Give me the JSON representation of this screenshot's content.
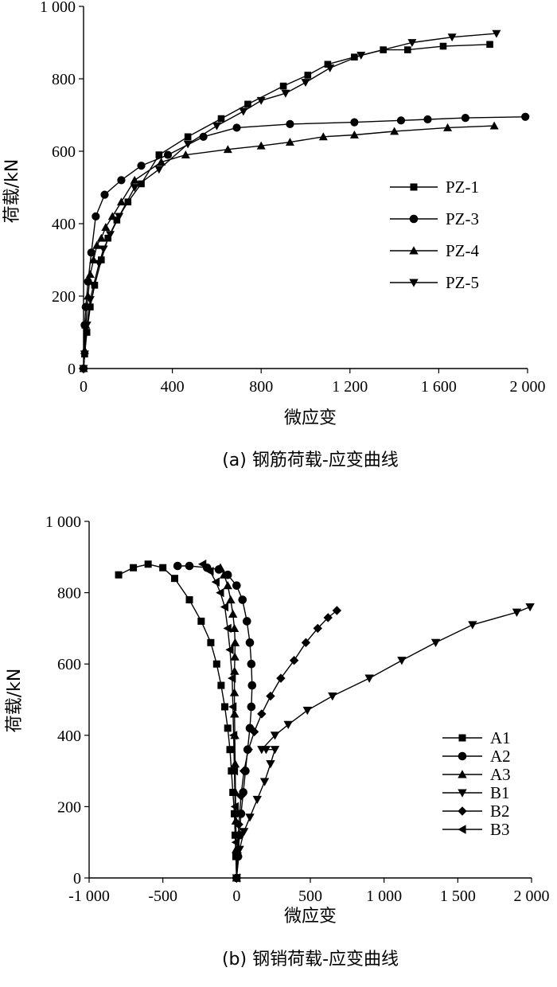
{
  "chart_data": [
    {
      "type": "line",
      "caption": "(a) 钢筋荷载-应变曲线",
      "xlabel": "微应变",
      "ylabel": "荷载/kN",
      "xlim": [
        0,
        2000
      ],
      "ylim": [
        0,
        1000
      ],
      "xticks": [
        0,
        400,
        800,
        1200,
        1600,
        2000
      ],
      "xtick_labels": [
        "0",
        "400",
        "800",
        "1 200",
        "1 600",
        "2 000"
      ],
      "yticks": [
        0,
        200,
        400,
        600,
        800,
        1000
      ],
      "ytick_labels": [
        "0",
        "200",
        "400",
        "600",
        "800",
        "1 000"
      ],
      "grid": false,
      "legend_position": "right",
      "series": [
        {
          "name": "PZ-1",
          "marker": "square",
          "x": [
            0,
            5,
            15,
            30,
            50,
            80,
            110,
            150,
            200,
            260,
            340,
            470,
            620,
            740,
            900,
            1010,
            1100,
            1220,
            1350,
            1460,
            1620,
            1830
          ],
          "y": [
            0,
            40,
            100,
            170,
            230,
            300,
            360,
            410,
            460,
            510,
            590,
            640,
            690,
            730,
            780,
            810,
            840,
            860,
            880,
            880,
            890,
            895
          ]
        },
        {
          "name": "PZ-3",
          "marker": "circle",
          "x": [
            0,
            5,
            10,
            20,
            35,
            55,
            95,
            170,
            260,
            380,
            540,
            690,
            930,
            1220,
            1430,
            1550,
            1720,
            1990
          ],
          "y": [
            0,
            120,
            170,
            240,
            320,
            420,
            480,
            520,
            560,
            590,
            640,
            665,
            675,
            680,
            685,
            688,
            692,
            695
          ]
        },
        {
          "name": "PZ-4",
          "marker": "triangle-up",
          "x": [
            0,
            5,
            10,
            20,
            30,
            45,
            60,
            80,
            100,
            130,
            170,
            230,
            350,
            460,
            650,
            800,
            930,
            1080,
            1220,
            1400,
            1640,
            1850
          ],
          "y": [
            0,
            50,
            120,
            200,
            260,
            300,
            340,
            360,
            390,
            420,
            460,
            520,
            570,
            590,
            605,
            615,
            625,
            640,
            645,
            655,
            665,
            670
          ]
        },
        {
          "name": "PZ-5",
          "marker": "triangle-down",
          "x": [
            0,
            5,
            15,
            30,
            45,
            70,
            90,
            120,
            160,
            230,
            340,
            470,
            600,
            720,
            800,
            910,
            1000,
            1110,
            1250,
            1480,
            1660,
            1860
          ],
          "y": [
            0,
            40,
            120,
            190,
            230,
            290,
            330,
            370,
            420,
            500,
            550,
            620,
            670,
            710,
            740,
            760,
            790,
            830,
            865,
            900,
            915,
            925
          ]
        }
      ]
    },
    {
      "type": "line",
      "caption": "(b) 钢销荷载-应变曲线",
      "xlabel": "微应变",
      "ylabel": "荷载/kN",
      "xlim": [
        -1000,
        2000
      ],
      "ylim": [
        0,
        1000
      ],
      "xticks": [
        -1000,
        -500,
        0,
        500,
        1000,
        1500,
        2000
      ],
      "xtick_labels": [
        "-1 000",
        "-500",
        "0",
        "500",
        "1 000",
        "1 500",
        "2 000"
      ],
      "yticks": [
        0,
        200,
        400,
        600,
        800,
        1000
      ],
      "ytick_labels": [
        "0",
        "200",
        "400",
        "600",
        "800",
        "1 000"
      ],
      "grid": false,
      "legend_position": "right",
      "series": [
        {
          "name": "A1",
          "marker": "square",
          "x": [
            0,
            -5,
            -10,
            -15,
            -25,
            -35,
            -45,
            -60,
            -80,
            -105,
            -135,
            -175,
            -240,
            -320,
            -420,
            -500,
            -600,
            -700,
            -800
          ],
          "y": [
            0,
            60,
            120,
            180,
            240,
            300,
            360,
            420,
            480,
            540,
            600,
            660,
            720,
            780,
            840,
            870,
            880,
            870,
            850
          ]
        },
        {
          "name": "A2",
          "marker": "circle",
          "x": [
            0,
            10,
            20,
            30,
            45,
            60,
            75,
            90,
            100,
            105,
            100,
            90,
            70,
            40,
            0,
            -60,
            -120,
            -200,
            -320,
            -400
          ],
          "y": [
            0,
            60,
            120,
            180,
            240,
            300,
            360,
            420,
            480,
            540,
            600,
            660,
            720,
            780,
            820,
            850,
            865,
            870,
            875,
            875
          ]
        },
        {
          "name": "A3",
          "marker": "triangle-up",
          "x": [
            0,
            -3,
            -5,
            -8,
            -10,
            -12,
            -14,
            -15,
            -14,
            -12,
            -10,
            -15,
            -25,
            -40,
            -60,
            -85,
            -110
          ],
          "y": [
            0,
            80,
            160,
            240,
            320,
            400,
            460,
            520,
            580,
            620,
            660,
            700,
            740,
            780,
            820,
            850,
            870
          ]
        },
        {
          "name": "B1",
          "marker": "triangle-down",
          "x": [
            0,
            20,
            50,
            90,
            140,
            190,
            230,
            260,
            200,
            170,
            260,
            350,
            480,
            650,
            900,
            1120,
            1350,
            1600,
            1900,
            1990
          ],
          "y": [
            0,
            80,
            130,
            170,
            220,
            270,
            320,
            360,
            360,
            360,
            400,
            430,
            470,
            510,
            560,
            610,
            660,
            710,
            745,
            760
          ]
        },
        {
          "name": "B2",
          "marker": "diamond",
          "x": [
            0,
            5,
            15,
            30,
            50,
            80,
            120,
            170,
            230,
            300,
            390,
            470,
            550,
            620,
            680
          ],
          "y": [
            0,
            70,
            150,
            230,
            300,
            360,
            410,
            460,
            510,
            560,
            610,
            660,
            700,
            730,
            750
          ]
        },
        {
          "name": "B3",
          "marker": "triangle-left",
          "x": [
            0,
            -5,
            -10,
            -15,
            -20,
            -25,
            -30,
            -45,
            -60,
            -80,
            -110,
            -140,
            -180,
            -230
          ],
          "y": [
            0,
            100,
            200,
            300,
            400,
            480,
            560,
            640,
            700,
            760,
            800,
            830,
            860,
            880
          ]
        }
      ]
    }
  ]
}
